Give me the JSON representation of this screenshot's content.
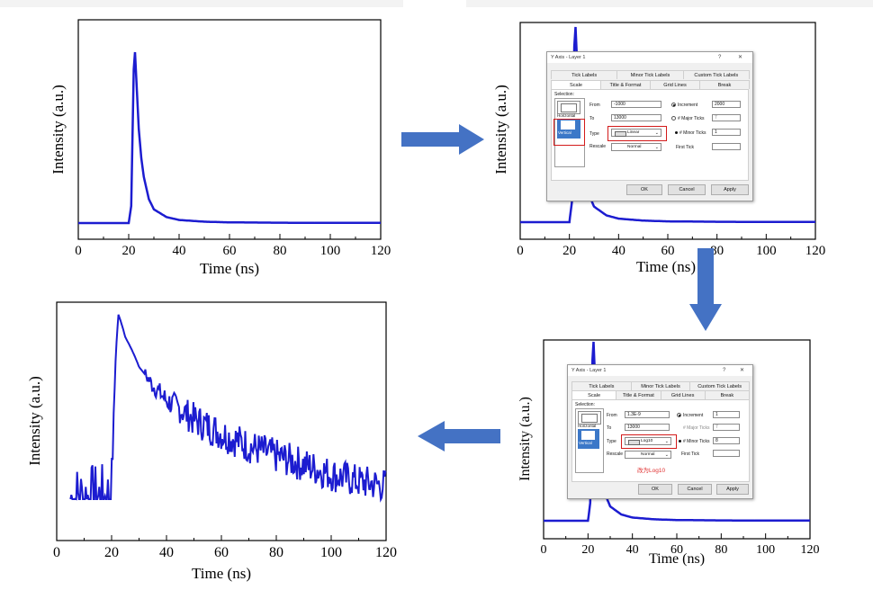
{
  "colors": {
    "trace": "#1c1cd0",
    "arrow": "#4472c4",
    "highlight": "#d31b1b"
  },
  "chart_data": [
    {
      "type": "line",
      "id": "linear-full",
      "xlabel": "Time (ns)",
      "ylabel": "Intensity (a.u.)",
      "xticks": [
        "0",
        "20",
        "40",
        "60",
        "80",
        "100",
        "120"
      ],
      "xlim": [
        0,
        120
      ],
      "yscale": "linear",
      "x": [
        0,
        20,
        21,
        22,
        22.5,
        23,
        24,
        25,
        26,
        28,
        30,
        35,
        40,
        50,
        60,
        80,
        100,
        120
      ],
      "y": [
        0,
        0,
        0.1,
        0.9,
        1.0,
        0.85,
        0.55,
        0.38,
        0.27,
        0.14,
        0.08,
        0.035,
        0.018,
        0.008,
        0.004,
        0.002,
        0.001,
        0.001
      ]
    },
    {
      "type": "line",
      "id": "linear-behind-dialog",
      "xlabel": "Time (ns)",
      "ylabel": "Intensity (a.u.)",
      "xticks": [
        "0",
        "20",
        "40",
        "60",
        "80",
        "100",
        "120"
      ],
      "xlim": [
        0,
        120
      ],
      "yscale": "linear"
    },
    {
      "type": "line",
      "id": "linear-behind-dialog-2",
      "xlabel": "Time (ns)",
      "ylabel": "Intensity (a.u.)",
      "xticks": [
        "0",
        "20",
        "40",
        "60",
        "80",
        "100",
        "120"
      ],
      "xlim": [
        0,
        120
      ],
      "yscale": "linear"
    },
    {
      "type": "line",
      "id": "log-scale",
      "xlabel": "Time (ns)",
      "ylabel": "Intensity (a.u.)",
      "xticks": [
        "0",
        "20",
        "40",
        "60",
        "80",
        "100",
        "120"
      ],
      "xlim": [
        0,
        120
      ],
      "yscale": "log",
      "x": [
        5,
        20,
        21,
        22.5,
        25,
        30,
        35,
        40,
        50,
        60,
        70,
        80,
        90,
        100,
        110,
        120
      ],
      "y": [
        0.07,
        0.07,
        0.3,
        1.0,
        0.72,
        0.47,
        0.36,
        0.29,
        0.22,
        0.18,
        0.15,
        0.13,
        0.115,
        0.1,
        0.09,
        0.085
      ]
    }
  ],
  "dialog1": {
    "title": "Y Axis - Layer 1",
    "ctrl_help": "?",
    "ctrl_close": "✕",
    "tabs_row1": [
      "Tick Labels",
      "Minor Tick Labels",
      "Custom Tick Labels"
    ],
    "tabs_row2": [
      "Scale",
      "Title & Format",
      "Grid Lines",
      "Break"
    ],
    "selection_label": "Selection:",
    "selection_items": [
      "Horizontal",
      "Vertical"
    ],
    "from_label": "From",
    "from_value": "-1000",
    "to_label": "To",
    "to_value": "13000",
    "type_label": "Type",
    "type_value": "Linear",
    "rescale_label": "Rescale",
    "rescale_value": "Normal",
    "increment_label": "Increment",
    "increment_value": "2000",
    "major_ticks_label": "# Major Ticks",
    "major_ticks_value": "7",
    "minor_ticks_label": "# Minor Ticks",
    "minor_ticks_value": "1",
    "first_tick_label": "First Tick",
    "ok": "OK",
    "cancel": "Cancel",
    "apply": "Apply"
  },
  "dialog2": {
    "title": "Y Axis - Layer 1",
    "ctrl_help": "?",
    "ctrl_close": "✕",
    "tabs_row1": [
      "Tick Labels",
      "Minor Tick Labels",
      "Custom Tick Labels"
    ],
    "tabs_row2": [
      "Scale",
      "Title & Format",
      "Grid Lines",
      "Break"
    ],
    "selection_label": "Selection:",
    "selection_items": [
      "Horizontal",
      "Vertical"
    ],
    "from_label": "From",
    "from_value": "1.3E-9",
    "to_label": "To",
    "to_value": "13000",
    "type_label": "Type",
    "type_value": "Log10",
    "rescale_label": "Rescale",
    "rescale_value": "Normal",
    "increment_label": "Increment",
    "increment_value": "1",
    "major_ticks_label": "# Major Ticks",
    "major_ticks_value": "7",
    "minor_ticks_label": "# Minor Ticks",
    "minor_ticks_value": "8",
    "first_tick_label": "First Tick",
    "note": "改为Log10",
    "ok": "OK",
    "cancel": "Cancel",
    "apply": "Apply"
  }
}
